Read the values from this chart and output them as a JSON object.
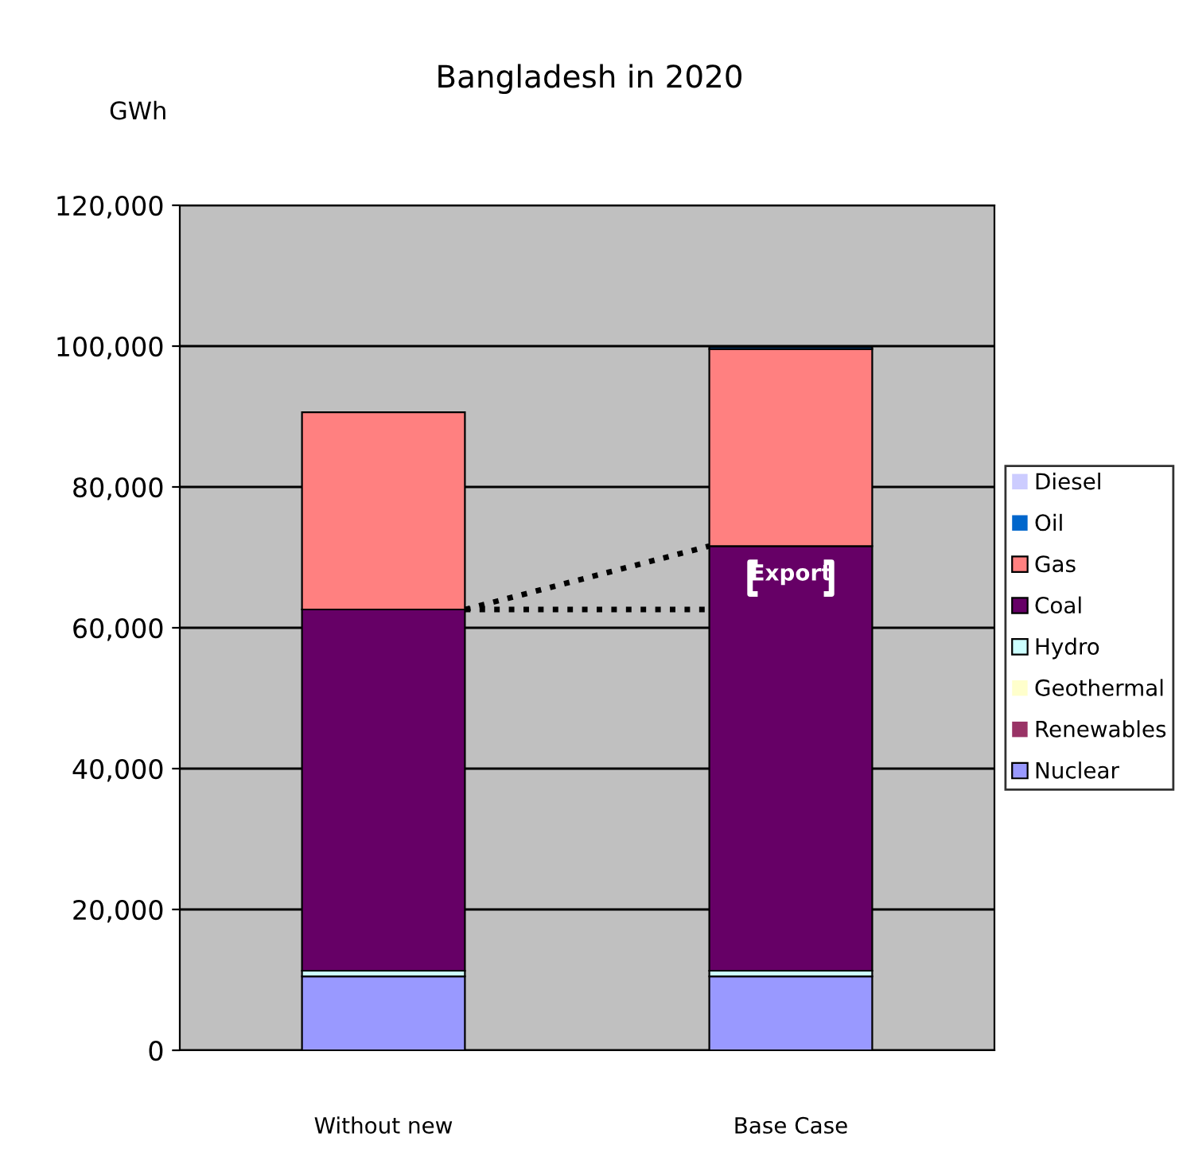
{
  "chart_data": {
    "type": "bar",
    "title": "Bangladesh in 2020",
    "ylabel": "GWh",
    "stacked": true,
    "categories": [
      "Without new",
      "Base Case"
    ],
    "series": [
      {
        "name": "Nuclear",
        "color": "#9999ff",
        "values": [
          10500,
          10500
        ]
      },
      {
        "name": "Renewables",
        "color": "#993366",
        "values": [
          0,
          0
        ]
      },
      {
        "name": "Geothermal",
        "color": "#ffffcc",
        "values": [
          0,
          0
        ]
      },
      {
        "name": "Hydro",
        "color": "#ccffff",
        "values": [
          800,
          800
        ]
      },
      {
        "name": "Coal",
        "color": "#660066",
        "values": [
          51300,
          60300
        ]
      },
      {
        "name": "Gas",
        "color": "#ff8080",
        "values": [
          28000,
          28000
        ]
      },
      {
        "name": "Oil",
        "color": "#0066cc",
        "values": [
          0,
          300
        ]
      },
      {
        "name": "Diesel",
        "color": "#ccccff",
        "values": [
          0,
          0
        ]
      }
    ],
    "ylim": [
      0,
      120000
    ],
    "yticks": [
      {
        "value": 0,
        "label": "0"
      },
      {
        "value": 20000,
        "label": "20,000"
      },
      {
        "value": 40000,
        "label": "40,000"
      },
      {
        "value": 60000,
        "label": "60,000"
      },
      {
        "value": 80000,
        "label": "80,000"
      },
      {
        "value": 100000,
        "label": "100,000"
      },
      {
        "value": 120000,
        "label": "120,000"
      }
    ],
    "grid": "y",
    "legend": "right",
    "annotations": [
      "Export"
    ]
  }
}
